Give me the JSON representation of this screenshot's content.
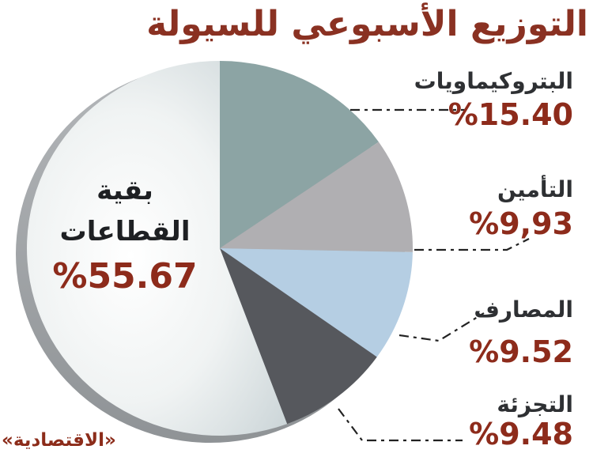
{
  "title": {
    "text": "التوزيع الأسبوعي للسيولة",
    "color": "#8a3122"
  },
  "credit": "«الاقتصادية»",
  "center_label": {
    "line1": "بقية",
    "line2": "القطاعات",
    "value": "%55.67"
  },
  "chart_data": {
    "type": "pie",
    "title": "التوزيع الأسبوعي للسيولة",
    "start_angle_deg": 0,
    "direction": "clockwise",
    "legend_position": "right",
    "value_color": "#8d2b1b",
    "label_color": "#2e3033",
    "slices": [
      {
        "label": "البتروكيماويات",
        "value": 15.4,
        "display_value": "%15.40",
        "color": "#8ca4a4"
      },
      {
        "label": "التأمين",
        "value": 9.93,
        "display_value": "%9,93",
        "color": "#b0afb2"
      },
      {
        "label": "المصارف",
        "value": 9.52,
        "display_value": "%9.52",
        "color": "#b5cee3"
      },
      {
        "label": "التجزئة",
        "value": 9.48,
        "display_value": "%9.48",
        "color": "#56585d"
      },
      {
        "label": "بقية القطاعات",
        "value": 55.67,
        "display_value": "%55.67",
        "color": "#e8eded",
        "gradient": true
      }
    ]
  }
}
